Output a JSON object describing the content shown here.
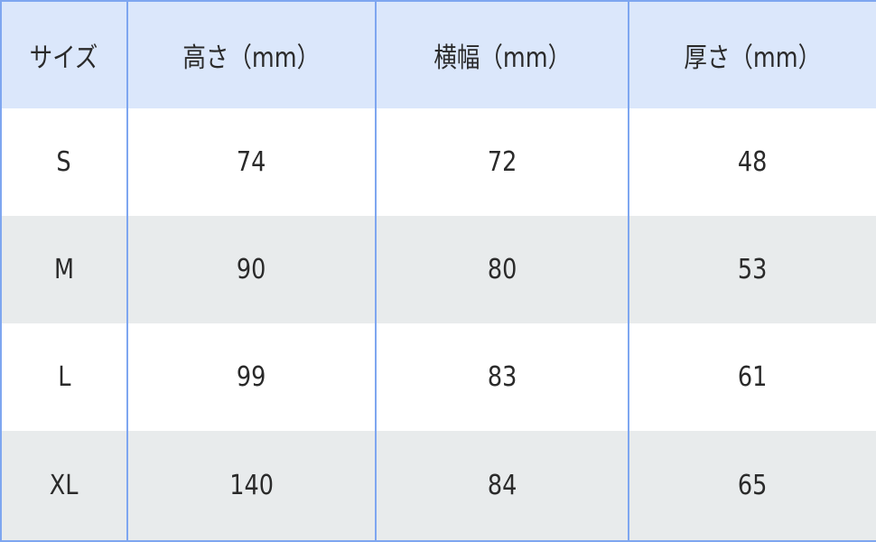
{
  "table": {
    "headers": [
      "サイズ",
      "高さ（mm）",
      "横幅（mm）",
      "厚さ（mm）"
    ],
    "rows": [
      [
        "S",
        "74",
        "72",
        "48"
      ],
      [
        "M",
        "90",
        "80",
        "53"
      ],
      [
        "L",
        "99",
        "83",
        "61"
      ],
      [
        "XL",
        "140",
        "84",
        "65"
      ]
    ]
  },
  "colors": {
    "header_bg": "#dbe7fb",
    "alt_row_bg": "#e8ebec",
    "border": "#7ea6f0"
  }
}
